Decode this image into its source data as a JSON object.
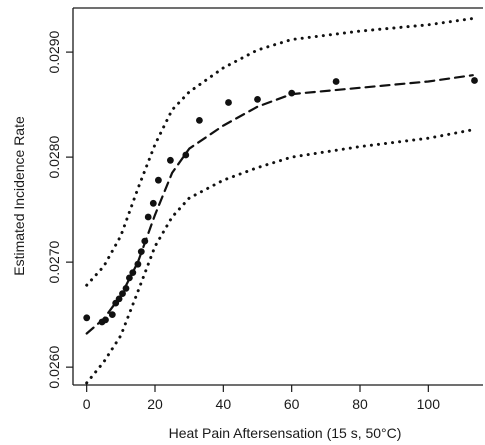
{
  "chart_data": {
    "type": "scatter",
    "title": "",
    "xlabel": "Heat Pain Aftersensation (15 s, 50°C)",
    "ylabel": "Estimated Incidence Rate",
    "xlim": [
      -4,
      116
    ],
    "ylim": [
      0.02583,
      0.02942
    ],
    "x_ticks": [
      0,
      20,
      40,
      60,
      80,
      100
    ],
    "x_tick_labels": [
      "0",
      "20",
      "40",
      "60",
      "80",
      "100"
    ],
    "y_ticks": [
      0.026,
      0.027,
      0.028,
      0.029
    ],
    "y_tick_labels": [
      "0.0260",
      "0.0270",
      "0.0280",
      "0.0290"
    ],
    "grid": false,
    "legend": false,
    "colors": {
      "ink": "#111111",
      "axis": "#1a1a1a",
      "background": "#ffffff"
    },
    "points": [
      [
        0,
        0.02647
      ],
      [
        4.5,
        0.02643
      ],
      [
        5.5,
        0.02645
      ],
      [
        7.5,
        0.0265
      ],
      [
        8.5,
        0.02661
      ],
      [
        9.5,
        0.02665
      ],
      [
        10.5,
        0.0267
      ],
      [
        11.5,
        0.02675
      ],
      [
        12.5,
        0.02685
      ],
      [
        13.5,
        0.0269
      ],
      [
        15,
        0.02698
      ],
      [
        16,
        0.0271
      ],
      [
        17,
        0.0272
      ],
      [
        18,
        0.02743
      ],
      [
        19.5,
        0.02756
      ],
      [
        21,
        0.02778
      ],
      [
        24.5,
        0.02797
      ],
      [
        29,
        0.02802
      ],
      [
        33,
        0.02835
      ],
      [
        41.5,
        0.02852
      ],
      [
        50,
        0.02855
      ],
      [
        60,
        0.02861
      ],
      [
        73,
        0.02872
      ],
      [
        113.5,
        0.02873
      ]
    ],
    "series": [
      {
        "style": "dashed",
        "x": [
          0,
          5,
          10,
          15,
          20,
          25,
          30,
          40,
          50,
          60,
          80,
          100,
          113
        ],
        "values": [
          0.02632,
          0.02646,
          0.02668,
          0.027,
          0.02745,
          0.02785,
          0.02808,
          0.0283,
          0.02848,
          0.0286,
          0.02866,
          0.02872,
          0.02878
        ]
      },
      {
        "style": "dotted",
        "x": [
          0,
          5,
          10,
          15,
          20,
          25,
          30,
          40,
          50,
          60,
          80,
          100,
          113
        ],
        "values": [
          0.02678,
          0.02696,
          0.02725,
          0.0277,
          0.02812,
          0.02845,
          0.02862,
          0.02885,
          0.02902,
          0.02912,
          0.0292,
          0.02926,
          0.02932
        ]
      },
      {
        "style": "dotted",
        "x": [
          0,
          5,
          10,
          15,
          20,
          25,
          30,
          40,
          50,
          60,
          80,
          100,
          113
        ],
        "values": [
          0.02585,
          0.02605,
          0.0263,
          0.02672,
          0.02715,
          0.02743,
          0.02761,
          0.02778,
          0.0279,
          0.028,
          0.0281,
          0.02818,
          0.02826
        ]
      }
    ]
  }
}
